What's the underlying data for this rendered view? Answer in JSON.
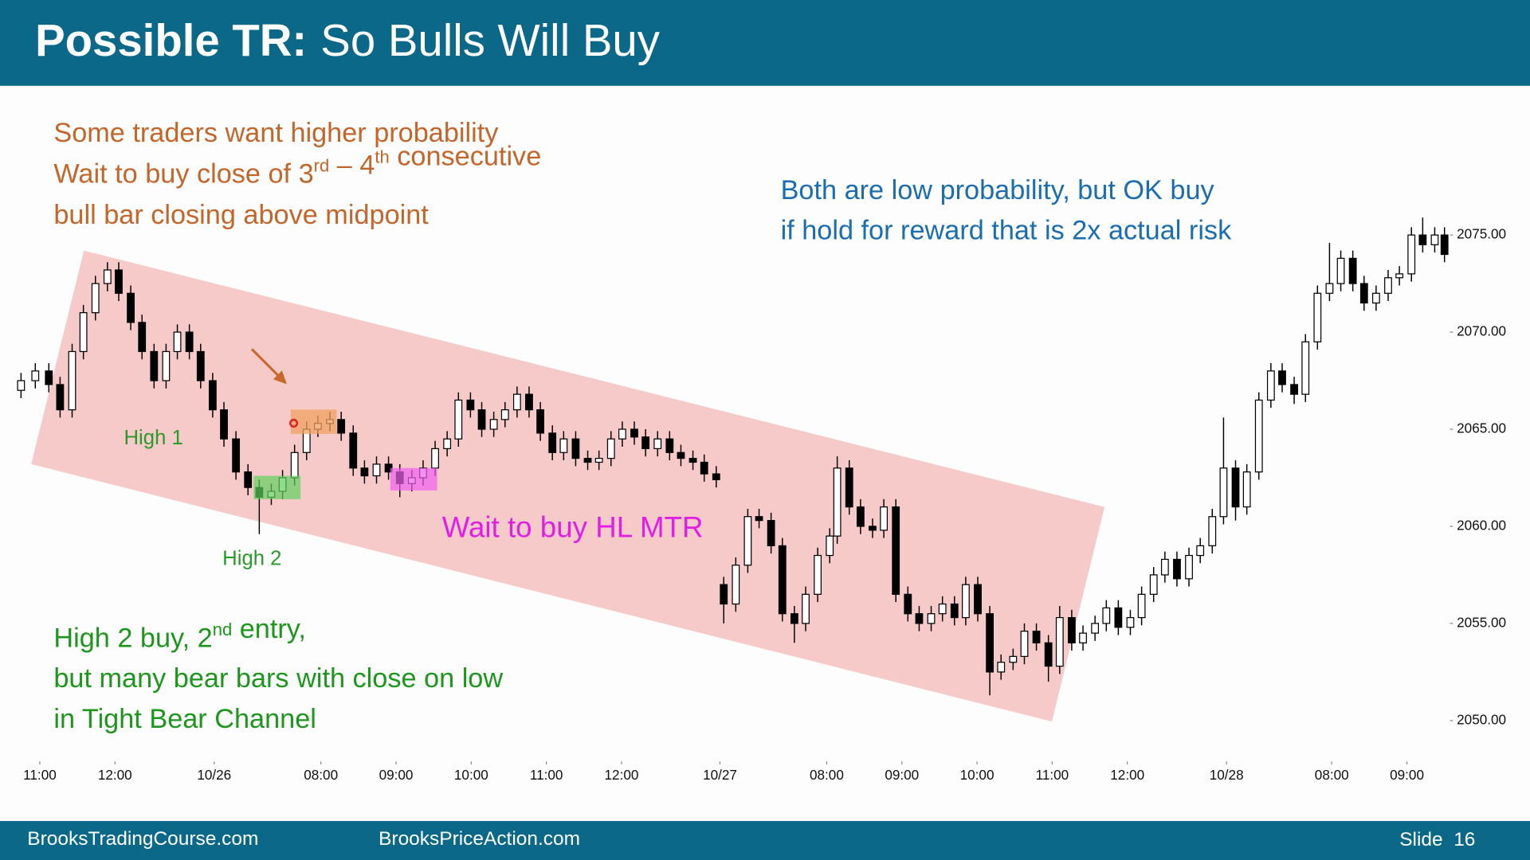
{
  "header": {
    "title_bold": "Possible TR:",
    "title_rest": "So Bulls Will Buy"
  },
  "chart_data": {
    "type": "candlestick",
    "up_color": "#ffffff",
    "down_color": "#000000",
    "channel_color": "#f4a8a8",
    "x": [
      -0.25,
      -0.06,
      0.12,
      0.27,
      0.43,
      0.58,
      0.74,
      0.9,
      1.05,
      1.21,
      1.36,
      1.52,
      1.68,
      1.83,
      1.99,
      2.14,
      2.3,
      2.45,
      2.61,
      2.77,
      2.92,
      3.08,
      3.23,
      3.39,
      3.55,
      3.7,
      3.86,
      4.01,
      4.17,
      4.32,
      4.48,
      4.64,
      4.79,
      4.95,
      5.1,
      5.26,
      5.42,
      5.57,
      5.73,
      5.88,
      6.04,
      6.19,
      6.35,
      6.51,
      6.66,
      6.82,
      6.97,
      7.13,
      7.29,
      7.44,
      7.6,
      7.75,
      7.91,
      8.06,
      8.22,
      8.38,
      8.53,
      8.69,
      8.84,
      9.0,
      9.1,
      9.26,
      9.42,
      9.57,
      9.73,
      9.88,
      10.04,
      10.19,
      10.35,
      10.51,
      10.61,
      10.77,
      10.92,
      11.08,
      11.23,
      11.39,
      11.55,
      11.7,
      11.86,
      12.01,
      12.17,
      12.32,
      12.48,
      12.64,
      12.79,
      12.95,
      13.1,
      13.26,
      13.42,
      13.57,
      13.73,
      13.88,
      14.04,
      14.19,
      14.35,
      14.51,
      14.66,
      14.82,
      14.97,
      15.13,
      15.29,
      15.44,
      15.6,
      15.75,
      15.91,
      16.06,
      16.22,
      16.38,
      16.53,
      16.69,
      16.84,
      17.0,
      17.16,
      17.31,
      17.47,
      17.62,
      17.78,
      17.94,
      18.09,
      18.25,
      18.4,
      18.56,
      18.69
    ],
    "open": [
      2067,
      2067.5,
      2068,
      2067.3,
      2066,
      2069,
      2071,
      2072.5,
      2073.2,
      2072,
      2070.5,
      2069,
      2067.5,
      2069,
      2070,
      2069,
      2067.5,
      2066,
      2064.5,
      2062.8,
      2062,
      2061.5,
      2061.8,
      2062.5,
      2063.8,
      2065,
      2065.3,
      2065.5,
      2064.8,
      2063,
      2062.6,
      2063.2,
      2062.8,
      2062.2,
      2062.5,
      2063,
      2064,
      2064.5,
      2066.5,
      2066,
      2065,
      2065.5,
      2066,
      2066.8,
      2066,
      2064.8,
      2063.8,
      2064.5,
      2063.5,
      2063.3,
      2063.5,
      2064.5,
      2065,
      2064.6,
      2064,
      2064.5,
      2063.8,
      2063.5,
      2063.3,
      2062.7,
      2057,
      2056,
      2058,
      2060.5,
      2060.3,
      2059,
      2055.5,
      2055,
      2056.5,
      2058.5,
      2059.5,
      2063,
      2061,
      2060,
      2059.8,
      2061,
      2056.5,
      2055.5,
      2055,
      2055.5,
      2056,
      2055.3,
      2057,
      2055.5,
      2052.5,
      2053,
      2053.3,
      2054.6,
      2054,
      2052.8,
      2055.3,
      2054,
      2054.5,
      2055,
      2055.8,
      2054.8,
      2055.3,
      2056.5,
      2057.5,
      2058.3,
      2057.3,
      2058.5,
      2059,
      2060.5,
      2063,
      2061,
      2062.8,
      2066.5,
      2068,
      2067.3,
      2066.8,
      2069.5,
      2072,
      2072.5,
      2073.8,
      2072.5,
      2071.5,
      2072,
      2072.8,
      2073,
      2075,
      2074.5,
      2075
    ],
    "high": [
      2067.9,
      2068.4,
      2068.4,
      2067.7,
      2069.4,
      2071.4,
      2072.9,
      2073.6,
      2073.6,
      2072.4,
      2070.9,
      2069.4,
      2069.4,
      2070.4,
      2070.4,
      2069.4,
      2067.9,
      2066.4,
      2064.9,
      2063.2,
      2062.4,
      2062.2,
      2062.9,
      2064.2,
      2065.4,
      2065.7,
      2065.9,
      2065.9,
      2065.2,
      2063.4,
      2063.6,
      2063.6,
      2063.2,
      2062.9,
      2063.4,
      2064.4,
      2064.9,
      2066.9,
      2066.9,
      2066.4,
      2065.9,
      2066.4,
      2067.2,
      2067.2,
      2066.4,
      2065.2,
      2064.9,
      2064.9,
      2063.9,
      2063.9,
      2064.9,
      2065.4,
      2065.4,
      2065,
      2064.9,
      2064.9,
      2064.2,
      2063.9,
      2063.7,
      2063.1,
      2057.4,
      2058.4,
      2060.9,
      2060.9,
      2060.7,
      2059.4,
      2055.9,
      2056.9,
      2058.9,
      2059.9,
      2063.6,
      2063.4,
      2061.4,
      2060.4,
      2061.4,
      2061.4,
      2056.9,
      2055.9,
      2055.9,
      2056.4,
      2056.4,
      2057.4,
      2057.4,
      2055.9,
      2053.4,
      2053.7,
      2055,
      2055,
      2054.4,
      2055.9,
      2055.7,
      2054.9,
      2055.4,
      2056.2,
      2056.2,
      2055.7,
      2056.9,
      2057.9,
      2058.7,
      2058.7,
      2058.9,
      2059.4,
      2060.9,
      2065.6,
      2063.4,
      2063.2,
      2066.9,
      2068.4,
      2068.4,
      2067.7,
      2069.9,
      2072.4,
      2074.6,
      2074.2,
      2074.2,
      2072.9,
      2072.4,
      2073.2,
      2073.4,
      2075.4,
      2075.9,
      2075.4,
      2075.4
    ],
    "low": [
      2066.6,
      2067.1,
      2066.9,
      2065.6,
      2065.6,
      2068.6,
      2070.6,
      2072.1,
      2071.6,
      2070.1,
      2068.6,
      2067.1,
      2067.1,
      2068.6,
      2068.6,
      2067.1,
      2065.6,
      2064.1,
      2062.4,
      2061.6,
      2059.6,
      2061.1,
      2061.4,
      2062.1,
      2063.4,
      2064.6,
      2064.9,
      2064.4,
      2062.6,
      2062.2,
      2062.2,
      2062.4,
      2061.5,
      2061.8,
      2062.1,
      2062.6,
      2063.6,
      2064.1,
      2065.6,
      2064.6,
      2064.6,
      2065.1,
      2065.6,
      2065.6,
      2064.4,
      2063.4,
      2063.4,
      2063.1,
      2062.9,
      2062.9,
      2063.1,
      2064.1,
      2064.2,
      2063.6,
      2063.6,
      2063.4,
      2063.1,
      2062.9,
      2062.3,
      2062,
      2055,
      2055.6,
      2057.6,
      2059.9,
      2058.6,
      2055.1,
      2054,
      2054.6,
      2056.1,
      2058.1,
      2059.1,
      2060.6,
      2059.6,
      2059.4,
      2059.4,
      2056.1,
      2055.1,
      2054.6,
      2054.6,
      2055.1,
      2054.9,
      2054.9,
      2055.1,
      2051.3,
      2052.1,
      2052.6,
      2052.9,
      2053.6,
      2052,
      2052.4,
      2053.6,
      2053.6,
      2054.1,
      2054.6,
      2054.4,
      2054.4,
      2054.9,
      2056.1,
      2057.1,
      2056.9,
      2056.9,
      2058.1,
      2058.6,
      2060.1,
      2060.3,
      2060.6,
      2062.4,
      2066.1,
      2066.9,
      2066.3,
      2066.4,
      2069.1,
      2071.6,
      2072.1,
      2072.1,
      2071.1,
      2071.1,
      2071.6,
      2072.4,
      2072.6,
      2074.1,
      2074.1,
      2073.6
    ],
    "close": [
      2067.5,
      2068,
      2067.3,
      2066,
      2069,
      2071,
      2072.5,
      2073.2,
      2072,
      2070.5,
      2069,
      2067.5,
      2069,
      2070,
      2069,
      2067.5,
      2066,
      2064.5,
      2062.8,
      2062,
      2061.5,
      2061.8,
      2062.5,
      2063.8,
      2065,
      2065.3,
      2065.5,
      2064.8,
      2063,
      2062.6,
      2063.2,
      2062.8,
      2062.2,
      2062.5,
      2063,
      2064,
      2064.5,
      2066.5,
      2066,
      2065,
      2065.5,
      2066,
      2066.8,
      2066,
      2064.8,
      2063.8,
      2064.5,
      2063.5,
      2063.3,
      2063.5,
      2064.5,
      2065,
      2064.6,
      2064,
      2064.5,
      2063.8,
      2063.5,
      2063.3,
      2062.7,
      2062.4,
      2056,
      2058,
      2060.5,
      2060.3,
      2059,
      2055.5,
      2055,
      2056.5,
      2058.5,
      2059.5,
      2063,
      2061,
      2060,
      2059.8,
      2061,
      2056.5,
      2055.5,
      2055,
      2055.5,
      2056,
      2055.3,
      2057,
      2055.5,
      2052.5,
      2053,
      2053.3,
      2054.6,
      2054,
      2052.8,
      2055.3,
      2054,
      2054.5,
      2055,
      2055.8,
      2054.8,
      2055.3,
      2056.5,
      2057.5,
      2058.3,
      2057.3,
      2058.5,
      2059,
      2060.5,
      2063,
      2061,
      2062.8,
      2066.5,
      2068,
      2067.3,
      2066.8,
      2069.5,
      2072,
      2072.5,
      2073.8,
      2072.5,
      2071.5,
      2072,
      2072.8,
      2073,
      2075,
      2074.5,
      2075,
      2074
    ],
    "xlim": [
      -0.27,
      18.75
    ],
    "xticks": [
      {
        "value": 0,
        "label": "11:00"
      },
      {
        "value": 1,
        "label": "12:00"
      },
      {
        "value": 2.32,
        "label": "10/26"
      },
      {
        "value": 3.74,
        "label": "08:00"
      },
      {
        "value": 4.74,
        "label": "09:00"
      },
      {
        "value": 5.74,
        "label": "10:00"
      },
      {
        "value": 6.74,
        "label": "11:00"
      },
      {
        "value": 7.74,
        "label": "12:00"
      },
      {
        "value": 9.05,
        "label": "10/27"
      },
      {
        "value": 10.47,
        "label": "08:00"
      },
      {
        "value": 11.47,
        "label": "09:00"
      },
      {
        "value": 12.47,
        "label": "10:00"
      },
      {
        "value": 13.47,
        "label": "11:00"
      },
      {
        "value": 14.47,
        "label": "12:00"
      },
      {
        "value": 15.79,
        "label": "10/28"
      },
      {
        "value": 17.19,
        "label": "08:00"
      },
      {
        "value": 18.19,
        "label": "09:00"
      }
    ],
    "ylim": [
      2048,
      2082
    ],
    "yticks": [
      {
        "value": 2050,
        "label": "2050.00"
      },
      {
        "value": 2055,
        "label": "2055.00"
      },
      {
        "value": 2060,
        "label": "2060.00"
      },
      {
        "value": 2065,
        "label": "2065.00"
      },
      {
        "value": 2070,
        "label": "2070.00"
      },
      {
        "value": 2075,
        "label": "2075.00"
      }
    ]
  },
  "annotations": {
    "orange_note": [
      [
        "Some traders want higher probability"
      ],
      [
        "Wait to buy close of 3",
        {
          "sup": "rd"
        },
        " – 4",
        {
          "sup": "th"
        },
        " consecutive"
      ],
      [
        "bull bar closing above midpoint"
      ]
    ],
    "blue_note": [
      [
        "Both are low probability, but OK buy"
      ],
      [
        "if hold for reward that is 2x actual risk"
      ]
    ],
    "green_note": [
      [
        "High 2 buy, 2",
        {
          "sup": "nd"
        },
        " entry,"
      ],
      [
        "but many bear bars with close on low"
      ],
      [
        "in Tight Bear Channel"
      ]
    ],
    "high1": "High 1",
    "high2": "High 2",
    "magenta_note": "Wait to buy HL MTR"
  },
  "footer": {
    "left": "BrooksTradingCourse.com",
    "middle": "BrooksPriceAction.com",
    "right": "Slide  16"
  }
}
